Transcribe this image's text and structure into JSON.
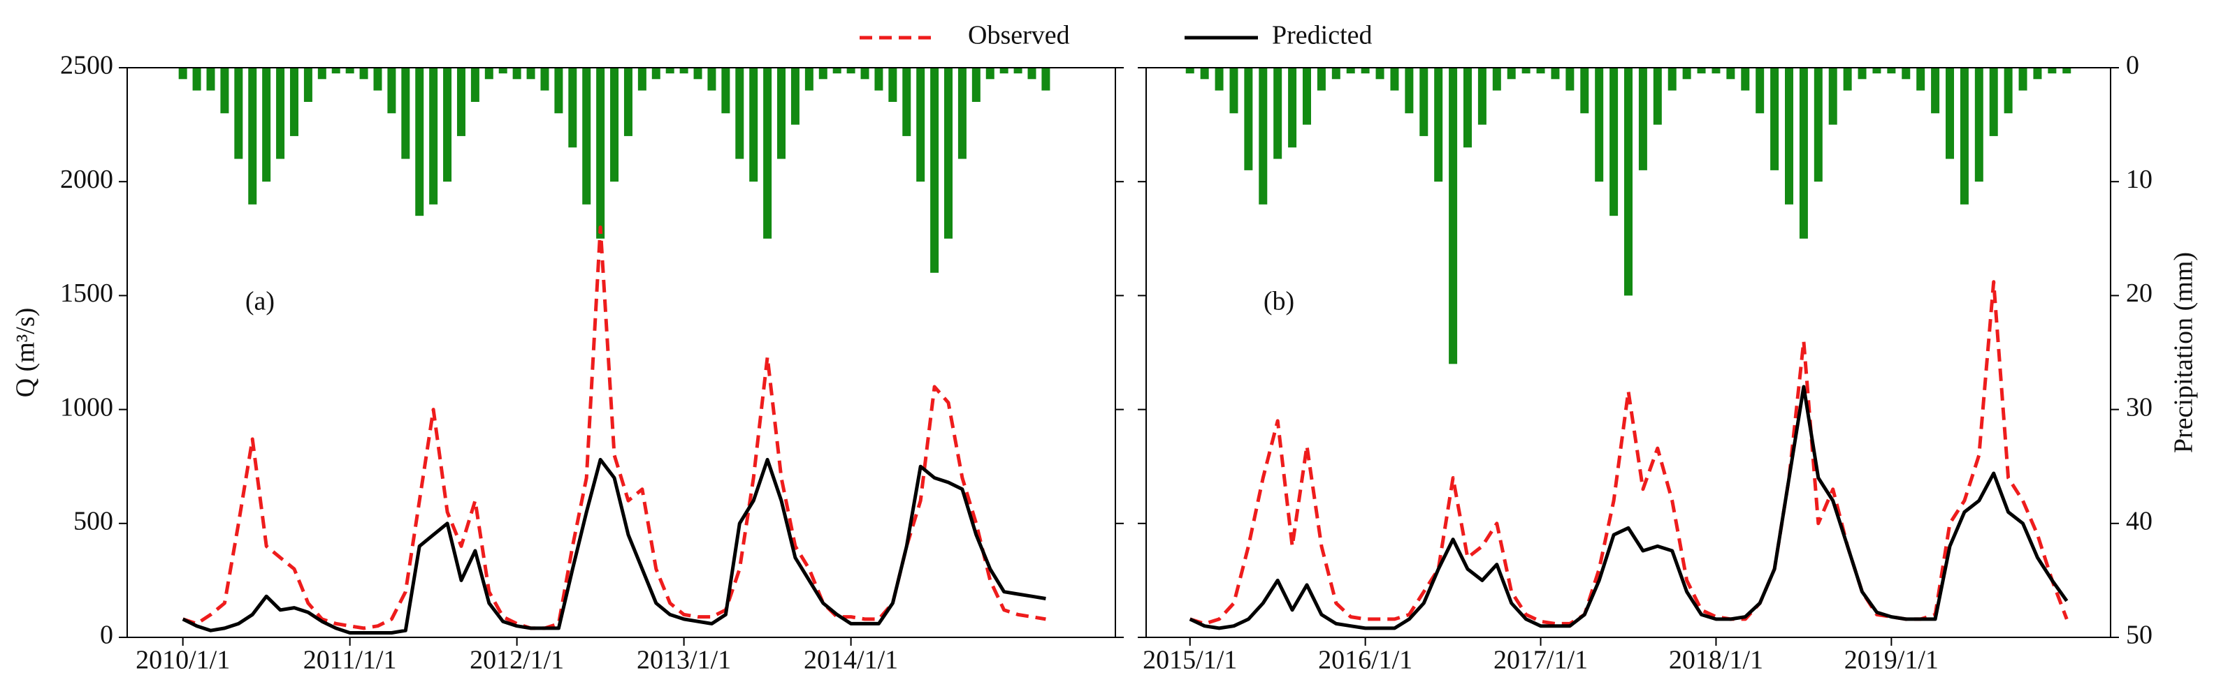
{
  "chart_data": [
    {
      "type": "line",
      "annotation": "(a)",
      "ylabel": "Q (m³/s)",
      "x": [
        "2010/1/1",
        "2010/2/1",
        "2010/3/1",
        "2010/4/1",
        "2010/5/1",
        "2010/6/1",
        "2010/7/1",
        "2010/8/1",
        "2010/9/1",
        "2010/10/1",
        "2010/11/1",
        "2010/12/1",
        "2011/1/1",
        "2011/2/1",
        "2011/3/1",
        "2011/4/1",
        "2011/5/1",
        "2011/6/1",
        "2011/7/1",
        "2011/8/1",
        "2011/9/1",
        "2011/10/1",
        "2011/11/1",
        "2011/12/1",
        "2012/1/1",
        "2012/2/1",
        "2012/3/1",
        "2012/4/1",
        "2012/5/1",
        "2012/6/1",
        "2012/7/1",
        "2012/8/1",
        "2012/9/1",
        "2012/10/1",
        "2012/11/1",
        "2012/12/1",
        "2013/1/1",
        "2013/2/1",
        "2013/3/1",
        "2013/4/1",
        "2013/5/1",
        "2013/6/1",
        "2013/7/1",
        "2013/8/1",
        "2013/9/1",
        "2013/10/1",
        "2013/11/1",
        "2013/12/1",
        "2014/1/1",
        "2014/2/1",
        "2014/3/1",
        "2014/4/1",
        "2014/5/1",
        "2014/6/1",
        "2014/7/1",
        "2014/8/1",
        "2014/9/1",
        "2014/10/1",
        "2014/11/1",
        "2014/12/1",
        "2015/1/1",
        "2015/2/1",
        "2015/3/1"
      ],
      "series": [
        {
          "name": "Observed",
          "color": "#ee1c1c",
          "dash": true,
          "values": [
            80,
            60,
            100,
            150,
            500,
            870,
            400,
            350,
            300,
            150,
            80,
            60,
            50,
            40,
            50,
            80,
            200,
            600,
            1000,
            550,
            400,
            600,
            200,
            90,
            60,
            40,
            40,
            60,
            400,
            700,
            1800,
            800,
            600,
            650,
            300,
            150,
            100,
            90,
            90,
            120,
            300,
            700,
            1230,
            700,
            400,
            300,
            150,
            90,
            90,
            80,
            80,
            150,
            400,
            600,
            1100,
            1030,
            700,
            500,
            250,
            120,
            100,
            90,
            80
          ]
        },
        {
          "name": "Predicted",
          "color": "#000000",
          "dash": false,
          "values": [
            80,
            50,
            30,
            40,
            60,
            100,
            180,
            120,
            130,
            110,
            70,
            40,
            20,
            20,
            20,
            20,
            30,
            400,
            450,
            500,
            250,
            380,
            150,
            70,
            50,
            40,
            40,
            40,
            300,
            550,
            780,
            700,
            450,
            300,
            150,
            100,
            80,
            70,
            60,
            100,
            500,
            600,
            780,
            600,
            350,
            250,
            150,
            100,
            60,
            60,
            60,
            150,
            400,
            750,
            700,
            680,
            650,
            450,
            300,
            200,
            190,
            180,
            170
          ]
        },
        {
          "type": "bar",
          "axis": "y2",
          "color": "#138a13",
          "values": [
            1,
            2,
            2,
            4,
            8,
            12,
            10,
            8,
            6,
            3,
            1,
            0.5,
            0.5,
            1,
            2,
            4,
            8,
            13,
            12,
            10,
            6,
            3,
            1,
            0.5,
            1,
            1,
            2,
            4,
            7,
            12,
            15,
            10,
            6,
            2,
            1,
            0.5,
            0.5,
            1,
            2,
            4,
            8,
            10,
            15,
            8,
            5,
            2,
            1,
            0.5,
            0.5,
            1,
            2,
            3,
            6,
            10,
            18,
            15,
            8,
            3,
            1,
            0.5,
            0.5,
            1,
            2
          ]
        }
      ],
      "xlim": [
        "2009/9/1",
        "2015/8/1"
      ],
      "xticks": [
        "2010/1/1",
        "2011/1/1",
        "2012/1/1",
        "2013/1/1",
        "2014/1/1"
      ],
      "ylim": [
        0,
        2500
      ],
      "yticks": [
        0,
        500,
        1000,
        1500,
        2000,
        2500
      ],
      "ytick_labels": true,
      "y2lim": [
        50,
        0
      ],
      "y2ticks": [
        0,
        10,
        20,
        30,
        40,
        50
      ],
      "y2tick_labels": false
    },
    {
      "type": "line",
      "annotation": "(b)",
      "y2label": "Precipitation (mm)",
      "x": [
        "2015/1/1",
        "2015/2/1",
        "2015/3/1",
        "2015/4/1",
        "2015/5/1",
        "2015/6/1",
        "2015/7/1",
        "2015/8/1",
        "2015/9/1",
        "2015/10/1",
        "2015/11/1",
        "2015/12/1",
        "2016/1/1",
        "2016/2/1",
        "2016/3/1",
        "2016/4/1",
        "2016/5/1",
        "2016/6/1",
        "2016/7/1",
        "2016/8/1",
        "2016/9/1",
        "2016/10/1",
        "2016/11/1",
        "2016/12/1",
        "2017/1/1",
        "2017/2/1",
        "2017/3/1",
        "2017/4/1",
        "2017/5/1",
        "2017/6/1",
        "2017/7/1",
        "2017/8/1",
        "2017/9/1",
        "2017/10/1",
        "2017/11/1",
        "2017/12/1",
        "2018/1/1",
        "2018/2/1",
        "2018/3/1",
        "2018/4/1",
        "2018/5/1",
        "2018/6/1",
        "2018/7/1",
        "2018/8/1",
        "2018/9/1",
        "2018/10/1",
        "2018/11/1",
        "2018/12/1",
        "2019/1/1",
        "2019/2/1",
        "2019/3/1",
        "2019/4/1",
        "2019/5/1",
        "2019/6/1",
        "2019/7/1",
        "2019/8/1",
        "2019/9/1",
        "2019/10/1",
        "2019/11/1",
        "2019/12/1",
        "2020/1/1"
      ],
      "series": [
        {
          "color": "#ee1c1c",
          "dash": true,
          "values": [
            80,
            60,
            80,
            150,
            400,
            700,
            950,
            400,
            840,
            400,
            150,
            90,
            80,
            80,
            80,
            100,
            200,
            300,
            700,
            350,
            400,
            500,
            200,
            100,
            70,
            60,
            60,
            100,
            300,
            600,
            1080,
            650,
            830,
            600,
            250,
            120,
            90,
            80,
            80,
            150,
            300,
            700,
            1300,
            500,
            650,
            400,
            200,
            100,
            90,
            80,
            80,
            100,
            500,
            600,
            800,
            1560,
            700,
            600,
            450,
            250,
            80
          ]
        },
        {
          "color": "#000000",
          "dash": false,
          "values": [
            80,
            50,
            40,
            50,
            80,
            150,
            250,
            120,
            230,
            100,
            60,
            50,
            40,
            40,
            40,
            80,
            150,
            300,
            430,
            300,
            250,
            320,
            150,
            80,
            50,
            50,
            50,
            100,
            250,
            450,
            480,
            380,
            400,
            380,
            200,
            100,
            80,
            80,
            90,
            150,
            300,
            700,
            1100,
            700,
            600,
            400,
            200,
            110,
            90,
            80,
            80,
            80,
            400,
            550,
            600,
            720,
            550,
            500,
            350,
            250,
            160
          ]
        },
        {
          "type": "bar",
          "axis": "y2",
          "color": "#138a13",
          "values": [
            0.5,
            1,
            2,
            4,
            9,
            12,
            8,
            7,
            5,
            2,
            1,
            0.5,
            0.5,
            1,
            2,
            4,
            6,
            10,
            26,
            7,
            5,
            2,
            1,
            0.5,
            0.5,
            1,
            2,
            4,
            10,
            13,
            20,
            9,
            5,
            2,
            1,
            0.5,
            0.5,
            1,
            2,
            4,
            9,
            12,
            15,
            10,
            5,
            2,
            1,
            0.5,
            0.5,
            1,
            2,
            4,
            8,
            12,
            10,
            6,
            4,
            2,
            1,
            0.5,
            0.5
          ]
        }
      ],
      "xlim": [
        "2014/10/1",
        "2020/4/1"
      ],
      "xticks": [
        "2015/1/1",
        "2016/1/1",
        "2017/1/1",
        "2018/1/1",
        "2019/1/1"
      ],
      "ylim": [
        0,
        2500
      ],
      "yticks": [
        0,
        500,
        1000,
        1500,
        2000,
        2500
      ],
      "ytick_labels": false,
      "y2lim": [
        50,
        0
      ],
      "y2ticks": [
        0,
        10,
        20,
        30,
        40,
        50
      ],
      "y2tick_labels": true
    }
  ]
}
